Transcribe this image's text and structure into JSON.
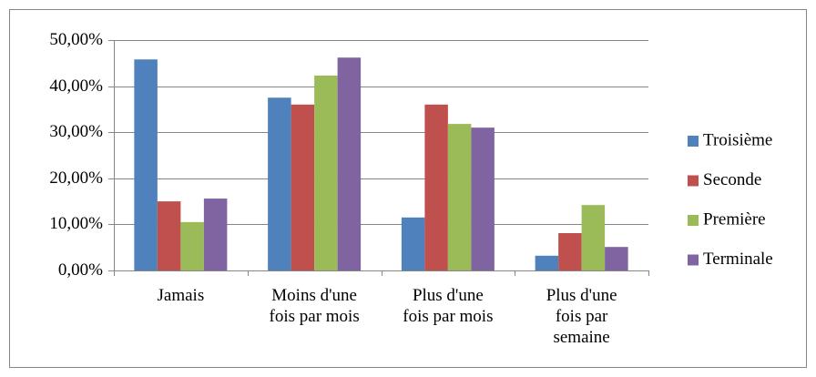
{
  "chart_data": {
    "type": "bar",
    "categories": [
      "Jamais",
      "Moins d'une\nfois par mois",
      "Plus d'une\nfois par mois",
      "Plus d'une\nfois par\nsemaine"
    ],
    "series": [
      {
        "name": "Troisième",
        "color": "#4f81bd",
        "values": [
          45.8,
          37.5,
          11.5,
          3.2
        ]
      },
      {
        "name": "Seconde",
        "color": "#c0504d",
        "values": [
          15.0,
          36.0,
          36.0,
          8.1
        ]
      },
      {
        "name": "Première",
        "color": "#9bbb59",
        "values": [
          10.5,
          42.3,
          31.8,
          14.2
        ]
      },
      {
        "name": "Terminale",
        "color": "#8064a2",
        "values": [
          15.6,
          46.2,
          31.0,
          5.1
        ]
      }
    ],
    "ylim": [
      0,
      50
    ],
    "yticks": [
      {
        "value": 0,
        "label": "0,00%"
      },
      {
        "value": 10,
        "label": "10,00%"
      },
      {
        "value": 20,
        "label": "20,00%"
      },
      {
        "value": 30,
        "label": "30,00%"
      },
      {
        "value": 40,
        "label": "40,00%"
      },
      {
        "value": 50,
        "label": "50,00%"
      }
    ],
    "grid": true,
    "legend": "right"
  }
}
